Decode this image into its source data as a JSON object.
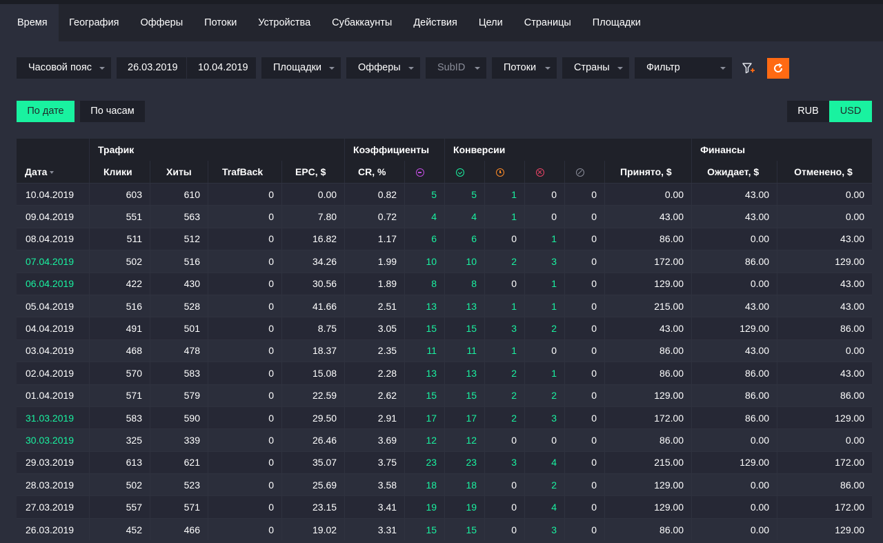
{
  "tabs": [
    "Время",
    "География",
    "Офферы",
    "Потоки",
    "Устройства",
    "Субаккаунты",
    "Действия",
    "Цели",
    "Страницы",
    "Площадки"
  ],
  "filters": {
    "timezone": "Часовой пояс",
    "date_from": "26.03.2019",
    "date_to": "10.04.2019",
    "sites": "Площадки",
    "offers": "Офферы",
    "subid": "SubID",
    "streams": "Потоки",
    "countries": "Страны",
    "filter": "Фильтр"
  },
  "view": {
    "by_date": "По дате",
    "by_hours": "По часам"
  },
  "currency": {
    "rub": "RUB",
    "usd": "USD"
  },
  "colors": {
    "accent": "#19f2a0",
    "refresh": "#ff6a13"
  },
  "groups": {
    "traffic": "Трафик",
    "coef": "Коэффициенты",
    "conv": "Конверсии",
    "fin": "Финансы"
  },
  "columns": {
    "date": "Дата",
    "clicks": "Клики",
    "hits": "Хиты",
    "trafback": "TrafBack",
    "epc": "EPC, $",
    "cr": "CR, %",
    "accepted": "Принято, $",
    "pending": "Ожидает, $",
    "cancelled": "Отменено, $"
  },
  "conv_icons": [
    "minus-circle-icon",
    "check-circle-icon",
    "clock-icon",
    "cancel-circle-icon",
    "slash-circle-icon"
  ],
  "rows": [
    [
      "10.04.2019",
      "603",
      "610",
      "0",
      "0.00",
      "0.82",
      "5",
      "5",
      "1",
      "0",
      "0",
      "0.00",
      "43.00",
      "0.00"
    ],
    [
      "09.04.2019",
      "551",
      "563",
      "0",
      "7.80",
      "0.72",
      "4",
      "4",
      "1",
      "0",
      "0",
      "43.00",
      "43.00",
      "0.00"
    ],
    [
      "08.04.2019",
      "511",
      "512",
      "0",
      "16.82",
      "1.17",
      "6",
      "6",
      "0",
      "1",
      "0",
      "86.00",
      "0.00",
      "43.00"
    ],
    [
      "07.04.2019",
      "502",
      "516",
      "0",
      "34.26",
      "1.99",
      "10",
      "10",
      "2",
      "3",
      "0",
      "172.00",
      "86.00",
      "129.00"
    ],
    [
      "06.04.2019",
      "422",
      "430",
      "0",
      "30.56",
      "1.89",
      "8",
      "8",
      "0",
      "1",
      "0",
      "129.00",
      "0.00",
      "43.00"
    ],
    [
      "05.04.2019",
      "516",
      "528",
      "0",
      "41.66",
      "2.51",
      "13",
      "13",
      "1",
      "1",
      "0",
      "215.00",
      "43.00",
      "43.00"
    ],
    [
      "04.04.2019",
      "491",
      "501",
      "0",
      "8.75",
      "3.05",
      "15",
      "15",
      "3",
      "2",
      "0",
      "43.00",
      "129.00",
      "86.00"
    ],
    [
      "03.04.2019",
      "468",
      "478",
      "0",
      "18.37",
      "2.35",
      "11",
      "11",
      "1",
      "0",
      "0",
      "86.00",
      "43.00",
      "0.00"
    ],
    [
      "02.04.2019",
      "570",
      "583",
      "0",
      "15.08",
      "2.28",
      "13",
      "13",
      "2",
      "1",
      "0",
      "86.00",
      "86.00",
      "43.00"
    ],
    [
      "01.04.2019",
      "571",
      "579",
      "0",
      "22.59",
      "2.62",
      "15",
      "15",
      "2",
      "2",
      "0",
      "129.00",
      "86.00",
      "86.00"
    ],
    [
      "31.03.2019",
      "583",
      "590",
      "0",
      "29.50",
      "2.91",
      "17",
      "17",
      "2",
      "3",
      "0",
      "172.00",
      "86.00",
      "129.00"
    ],
    [
      "30.03.2019",
      "325",
      "339",
      "0",
      "26.46",
      "3.69",
      "12",
      "12",
      "0",
      "0",
      "0",
      "86.00",
      "0.00",
      "0.00"
    ],
    [
      "29.03.2019",
      "613",
      "621",
      "0",
      "35.07",
      "3.75",
      "23",
      "23",
      "3",
      "4",
      "0",
      "215.00",
      "129.00",
      "172.00"
    ],
    [
      "28.03.2019",
      "502",
      "523",
      "0",
      "25.69",
      "3.58",
      "18",
      "18",
      "0",
      "2",
      "0",
      "129.00",
      "0.00",
      "86.00"
    ],
    [
      "27.03.2019",
      "557",
      "571",
      "0",
      "23.15",
      "3.41",
      "19",
      "19",
      "0",
      "4",
      "0",
      "129.00",
      "0.00",
      "172.00"
    ],
    [
      "26.03.2019",
      "452",
      "466",
      "0",
      "19.02",
      "3.31",
      "15",
      "15",
      "0",
      "3",
      "0",
      "86.00",
      "0.00",
      "129.00"
    ]
  ],
  "weekend_dates": [
    "07.04.2019",
    "06.04.2019",
    "31.03.2019",
    "30.03.2019"
  ]
}
